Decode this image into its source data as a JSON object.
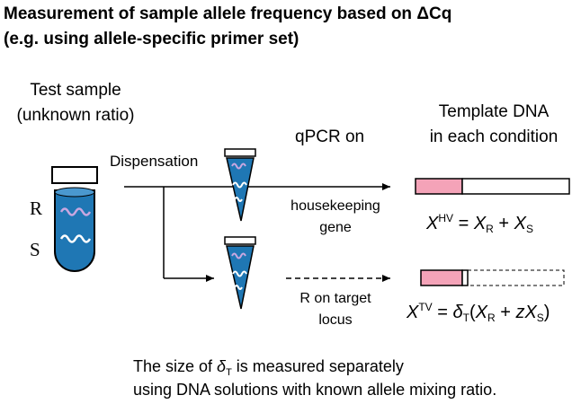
{
  "title": {
    "line1": "Measurement of sample allele frequency based on ΔCq",
    "line2": "(e.g. using allele-specific primer set)"
  },
  "test_sample": {
    "line1": "Test sample",
    "line2": "(unknown ratio)"
  },
  "alleles": {
    "r": "R",
    "s": "S"
  },
  "dispensation": "Dispensation",
  "qpcr_on": "qPCR on",
  "template_dna": {
    "line1": "Template DNA",
    "line2": "in each condition"
  },
  "housekeeping": {
    "line1": "housekeeping",
    "line2": "gene"
  },
  "target": {
    "line1": "R on target",
    "line2": "locus"
  },
  "eq_hv": {
    "lhs": "X",
    "lhs_sup": "HV",
    "eq": " = ",
    "a": "X",
    "a_sub": "R",
    "plus": " + ",
    "b": "X",
    "b_sub": "S"
  },
  "eq_tv": {
    "lhs": "X",
    "lhs_sup": "TV",
    "eq": " = ",
    "delta": "δ",
    "delta_sub": "T",
    "open": "(",
    "a": "X",
    "a_sub": "R",
    "plus": " + ",
    "z": "z",
    "b": "X",
    "b_sub": "S",
    "close": ")"
  },
  "footnote": {
    "l1_pre": "The size of ",
    "l1_delta": "δ",
    "l1_sub": "T",
    "l1_post": " is measured separately",
    "line2": "using DNA solutions with known allele mixing ratio."
  },
  "colors": {
    "liquid": "#1f77b4",
    "r_strand": "#c9a7e0",
    "s_strand": "#ffffff",
    "bar_fill": "#f4a3b8"
  }
}
